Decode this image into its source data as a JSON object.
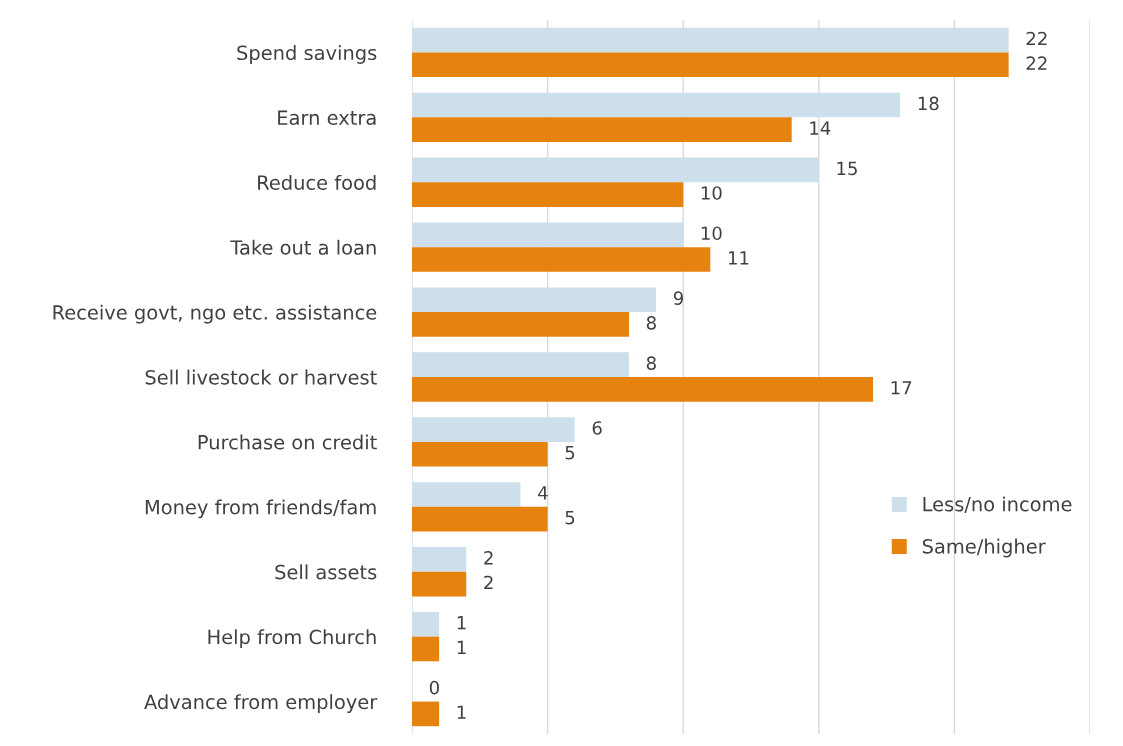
{
  "chart_data": {
    "type": "bar",
    "orientation": "horizontal",
    "categories": [
      "Spend savings",
      "Earn extra",
      "Reduce food",
      "Take out a loan",
      "Receive govt, ngo etc. assistance",
      "Sell livestock or harvest",
      "Purchase on credit",
      "Money from friends/fam",
      "Sell assets",
      "Help from Church",
      "Advance from employer"
    ],
    "series": [
      {
        "name": "Less/no income",
        "color": "#cddfea",
        "values": [
          22,
          18,
          15,
          10,
          9,
          8,
          6,
          4,
          2,
          1,
          0
        ]
      },
      {
        "name": "Same/higher",
        "color": "#e6820e",
        "values": [
          22,
          14,
          10,
          11,
          8,
          17,
          5,
          5,
          2,
          1,
          1
        ]
      }
    ],
    "xlim": [
      0,
      25
    ],
    "xticks": [
      {
        "value": 0,
        "label": null
      },
      {
        "value": 5,
        "label": null
      },
      {
        "value": 10,
        "label": null
      },
      {
        "value": 15,
        "label": null
      },
      {
        "value": 20,
        "label": null
      },
      {
        "value": 25,
        "label": null
      }
    ],
    "tick_labels": "y",
    "grid": "x",
    "legend": "right",
    "data_labels": true
  }
}
